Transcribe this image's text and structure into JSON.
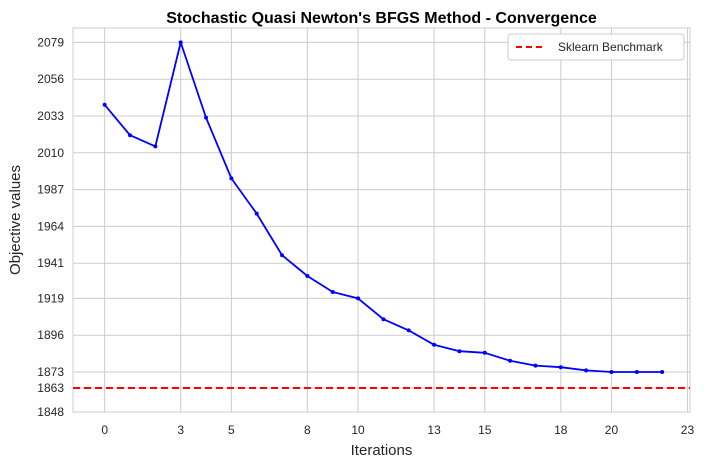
{
  "chart_data": {
    "type": "line",
    "title": "Stochastic Quasi Newton's BFGS Method - Convergence",
    "xlabel": "Iterations",
    "ylabel": "Objective values",
    "xlim": [
      -1.25,
      23.1
    ],
    "ylim": [
      1848,
      2088
    ],
    "xticks": [
      0,
      3,
      5,
      8,
      10,
      13,
      15,
      18,
      20,
      23
    ],
    "yticks": [
      1848,
      1863,
      1873,
      1896,
      1919,
      1941,
      1964,
      1987,
      2010,
      2033,
      2056,
      2079
    ],
    "grid": true,
    "legend_position": "top-right",
    "series": [
      {
        "color": "#0000ff",
        "x": [
          0,
          1,
          2,
          3,
          4,
          5,
          6,
          7,
          8,
          9,
          10,
          11,
          12,
          13,
          14,
          15,
          16,
          17,
          18,
          19,
          20,
          21,
          22
        ],
        "y": [
          2040,
          2021,
          2014,
          2079,
          2032,
          1994,
          1972,
          1946,
          1933,
          1923,
          1919,
          1906,
          1899,
          1890,
          1886,
          1885,
          1880,
          1877,
          1876,
          1874,
          1873,
          1873,
          1873
        ]
      }
    ],
    "hlines": [
      {
        "name": "Sklearn Benchmark",
        "y": 1863,
        "color": "#ff0000",
        "style": "dashed"
      }
    ]
  }
}
